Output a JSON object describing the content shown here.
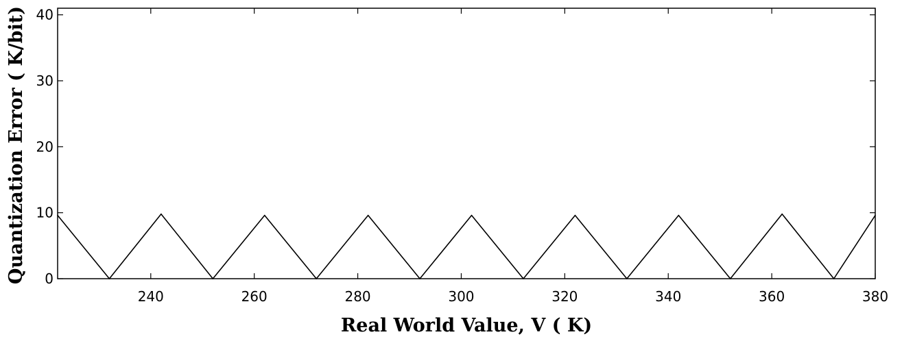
{
  "chart_data": {
    "type": "line",
    "title": "",
    "xlabel": "Real World Value, V ( K)",
    "ylabel": "Quantization Error ( K/bit)",
    "xlim": [
      222,
      380
    ],
    "ylim": [
      0,
      41
    ],
    "xticks": [
      240,
      260,
      280,
      300,
      320,
      340,
      360,
      380
    ],
    "yticks": [
      0,
      10,
      20,
      30,
      40
    ],
    "grid": false,
    "legend": "none",
    "line_color": "#000000",
    "series": [
      {
        "x": [
          222,
          232,
          242,
          252,
          262,
          272,
          282,
          292,
          302,
          312,
          322,
          332,
          342,
          352,
          362,
          372,
          380
        ],
        "y": [
          9.6,
          0,
          9.8,
          0,
          9.6,
          0,
          9.6,
          0,
          9.6,
          0,
          9.6,
          0,
          9.6,
          0,
          9.8,
          0,
          9.6
        ]
      }
    ]
  }
}
